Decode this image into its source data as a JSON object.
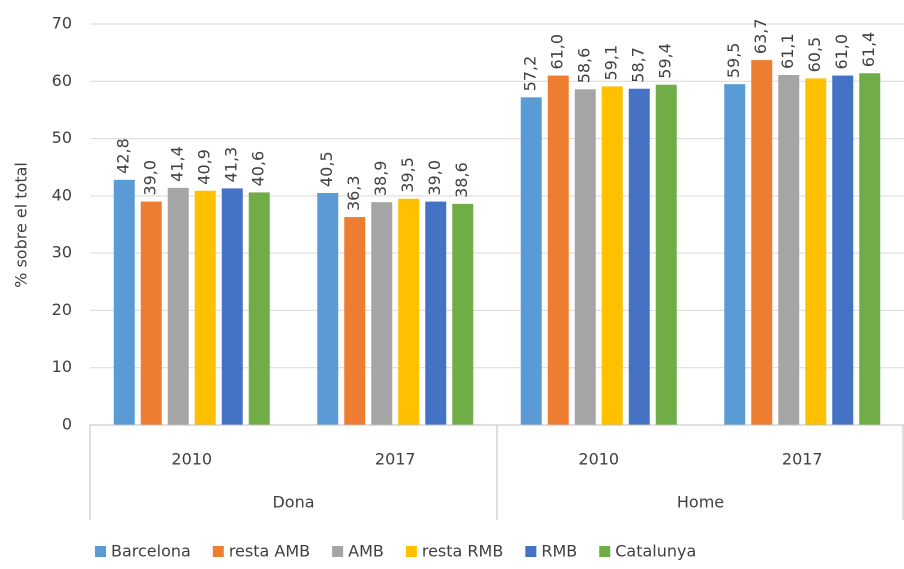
{
  "chart_data": {
    "type": "bar",
    "y_label": "% sobre el total",
    "groups": [
      {
        "name": "Dona",
        "categories": [
          "2010",
          "2017"
        ]
      },
      {
        "name": "Home",
        "categories": [
          "2010",
          "2017"
        ]
      }
    ],
    "series": [
      {
        "name": "Barcelona",
        "color": "#5b9bd5",
        "values": [
          42.8,
          40.5,
          57.2,
          59.5
        ],
        "value_labels": [
          "42,8",
          "40,5",
          "57,2",
          "59,5"
        ]
      },
      {
        "name": "resta AMB",
        "color": "#ed7d31",
        "values": [
          39.0,
          36.3,
          61.0,
          63.7
        ],
        "value_labels": [
          "39,0",
          "36,3",
          "61,0",
          "63,7"
        ]
      },
      {
        "name": "AMB",
        "color": "#a5a5a5",
        "values": [
          41.4,
          38.9,
          58.6,
          61.1
        ],
        "value_labels": [
          "41,4",
          "38,9",
          "58,6",
          "61,1"
        ]
      },
      {
        "name": "resta RMB",
        "color": "#ffc000",
        "values": [
          40.9,
          39.5,
          59.1,
          60.5
        ],
        "value_labels": [
          "40,9",
          "39,5",
          "59,1",
          "60,5"
        ]
      },
      {
        "name": "RMB",
        "color": "#4472c4",
        "values": [
          41.3,
          39.0,
          58.7,
          61.0
        ],
        "value_labels": [
          "41,3",
          "39,0",
          "58,7",
          "61,0"
        ]
      },
      {
        "name": "Catalunya",
        "color": "#70ad47",
        "values": [
          40.6,
          38.6,
          59.4,
          61.4
        ],
        "value_labels": [
          "40,6",
          "38,6",
          "59,4",
          "61,4"
        ]
      }
    ],
    "ylim": [
      0,
      70
    ],
    "yticks": [
      0,
      10,
      20,
      30,
      40,
      50,
      60,
      70
    ],
    "grid": true,
    "legend": "bottom"
  }
}
